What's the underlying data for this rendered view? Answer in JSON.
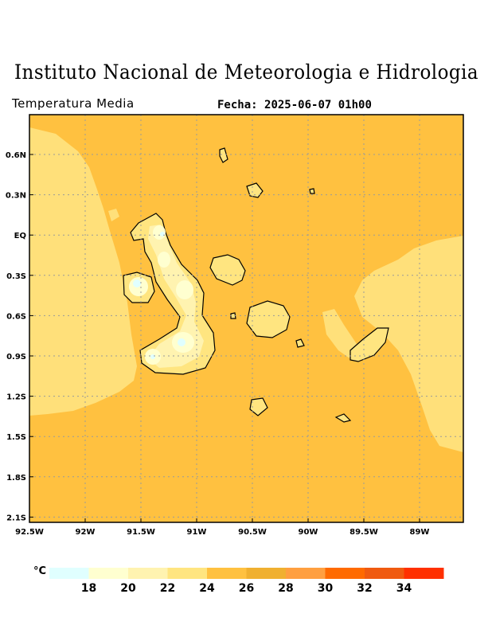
{
  "header": {
    "institute": "Instituto Nacional de Meteorologia e Hidrologia",
    "product": "Temperatura Media",
    "date_label": "Fecha:",
    "date_value": "2025-06-07 01h00"
  },
  "map": {
    "lon_ticks": [
      "92.5W",
      "92W",
      "91.5W",
      "91W",
      "90.5W",
      "90W",
      "89.5W",
      "89W"
    ],
    "lat_ticks": [
      "0.6N",
      "0.3N",
      "EQ",
      "0.3S",
      "0.6S",
      "0.9S",
      "1.2S",
      "1.5S",
      "1.8S",
      "2.1S"
    ],
    "colors": {
      "ocean_main": "#ffc140",
      "ocean_cool": "#ffe07a",
      "land_warm": "#ffe580",
      "land_mid": "#fff3b0",
      "land_cool": "#ffffd0",
      "land_peak": "#e0ffff",
      "grid": "#9a9a9a",
      "coast": "#000000"
    }
  },
  "legend": {
    "unit": "°C",
    "labels": [
      "18",
      "20",
      "22",
      "24",
      "26",
      "28",
      "30",
      "32",
      "34"
    ],
    "colors": [
      "#e0ffff",
      "#ffffd0",
      "#fff3b0",
      "#ffe580",
      "#ffc140",
      "#f0b030",
      "#ff9f40",
      "#ff6a00",
      "#f05a10",
      "#ff3000"
    ]
  }
}
